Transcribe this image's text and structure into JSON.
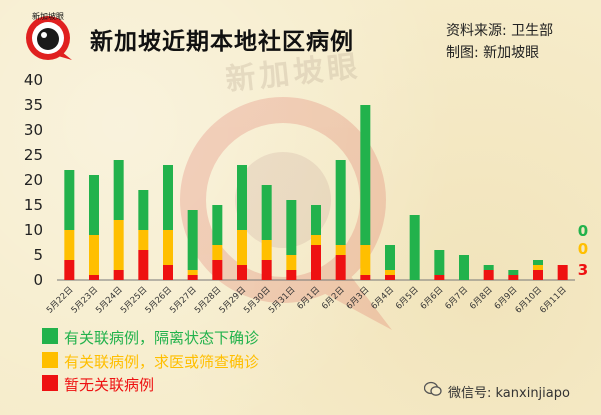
{
  "header": {
    "logo_text": "新加坡眼",
    "title": "新加坡近期本地社区病例",
    "source_line": "资料来源:  卫生部",
    "made_by_line": "制图:  新加坡眼",
    "watermark": "新加坡眼"
  },
  "colors": {
    "linked_quarantined": "#22b24c",
    "linked_detected": "#ffbf00",
    "unlinked": "#ee1111",
    "background": "#f6ecca"
  },
  "legend": [
    {
      "label": "有关联病例，隔离状态下确诊",
      "color": "#22b24c"
    },
    {
      "label": "有关联病例，求医或筛查确诊",
      "color": "#ffbf00"
    },
    {
      "label": "暂无关联病例",
      "color": "#ee1111"
    }
  ],
  "footer": {
    "wechat": "微信号: kanxinjiapo"
  },
  "chart_data": {
    "type": "bar",
    "stacked": true,
    "categories": [
      "5月22日",
      "5月23日",
      "5月24日",
      "5月25日",
      "5月26日",
      "5月27日",
      "5月28日",
      "5月29日",
      "5月30日",
      "5月31日",
      "6月1日",
      "6月2日",
      "6月3日",
      "6月4日",
      "6月5日",
      "6月6日",
      "6月7日",
      "6月8日",
      "6月9日",
      "6月10日",
      "6月11日"
    ],
    "series": [
      {
        "values": [
          4,
          1,
          2,
          6,
          3,
          1,
          4,
          3,
          4,
          2,
          7,
          5,
          1,
          1,
          0,
          1,
          0,
          2,
          1,
          2,
          3
        ]
      },
      {
        "values": [
          6,
          8,
          10,
          4,
          7,
          1,
          3,
          7,
          4,
          3,
          2,
          2,
          6,
          1,
          0,
          0,
          0,
          0,
          0,
          1,
          0
        ]
      },
      {
        "values": [
          12,
          12,
          12,
          8,
          13,
          12,
          8,
          13,
          11,
          11,
          6,
          17,
          28,
          5,
          13,
          5,
          5,
          1,
          1,
          1,
          0
        ]
      }
    ],
    "ylim": [
      0,
      40
    ],
    "yticks": [
      0,
      5,
      10,
      15,
      20,
      25,
      30,
      35,
      40
    ],
    "last_day_labels": [
      "0",
      "0",
      "3"
    ],
    "grid": false
  }
}
